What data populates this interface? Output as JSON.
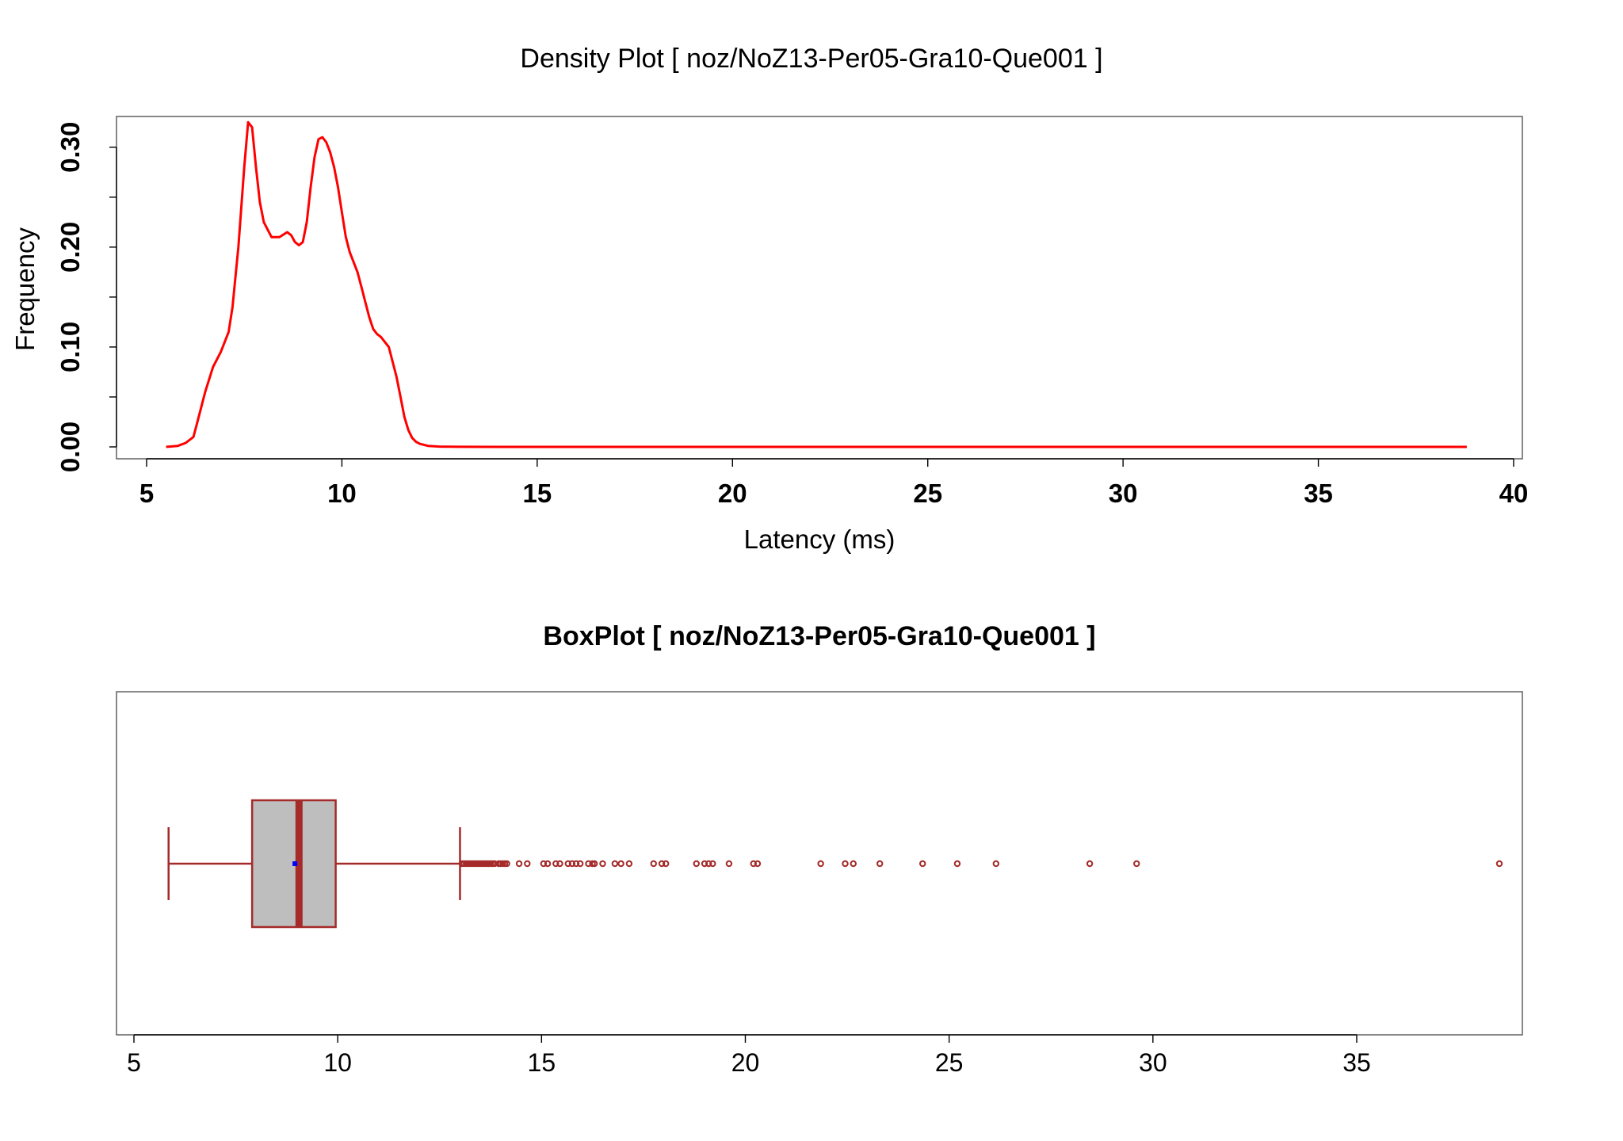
{
  "chart_data": [
    {
      "type": "line",
      "title": "Density Plot [ noz/NoZ13-Per05-Gra10-Que001 ]",
      "xlabel": "Latency (ms)",
      "ylabel": "Frequency",
      "xlim": [
        5,
        40
      ],
      "ylim": [
        0,
        0.33
      ],
      "x_ticks": [
        "5",
        "10",
        "15",
        "20",
        "25",
        "30",
        "35",
        "40"
      ],
      "y_ticks": [
        "0.00",
        "0.10",
        "0.20",
        "0.30"
      ],
      "line_color": "#ff0000",
      "series": [
        {
          "x": [
            5.5,
            5.8,
            6.0,
            6.2,
            6.3,
            6.5,
            6.7,
            6.9,
            7.1,
            7.2,
            7.35,
            7.5,
            7.6,
            7.7,
            7.8,
            7.9,
            8.0,
            8.2,
            8.4,
            8.6,
            8.7,
            8.8,
            8.9,
            9.0,
            9.1,
            9.2,
            9.3,
            9.4,
            9.5,
            9.6,
            9.7,
            9.8,
            9.9,
            10.0,
            10.1,
            10.2,
            10.3,
            10.4,
            10.5,
            10.6,
            10.7,
            10.8,
            10.9,
            11.0,
            11.2,
            11.4,
            11.5,
            11.6,
            11.7,
            11.8,
            11.9,
            12.0,
            12.2,
            12.5,
            13.0,
            14.0,
            20.0,
            30.0,
            38.8
          ],
          "y": [
            0.0,
            0.001,
            0.004,
            0.01,
            0.025,
            0.055,
            0.08,
            0.095,
            0.115,
            0.14,
            0.2,
            0.28,
            0.325,
            0.32,
            0.28,
            0.245,
            0.225,
            0.21,
            0.21,
            0.215,
            0.212,
            0.205,
            0.202,
            0.205,
            0.225,
            0.26,
            0.29,
            0.308,
            0.31,
            0.305,
            0.295,
            0.28,
            0.26,
            0.235,
            0.21,
            0.195,
            0.185,
            0.175,
            0.16,
            0.145,
            0.13,
            0.118,
            0.113,
            0.11,
            0.1,
            0.07,
            0.05,
            0.03,
            0.017,
            0.009,
            0.005,
            0.003,
            0.001,
            0.0003,
            0.0001,
            0.0,
            0.0,
            0.0,
            0.0
          ]
        }
      ]
    },
    {
      "type": "box",
      "title": "BoxPlot [ noz/NoZ13-Per05-Gra10-Que001 ]",
      "xlim": [
        5,
        40
      ],
      "x_ticks": [
        "5",
        "10",
        "15",
        "20",
        "25",
        "30",
        "35"
      ],
      "box_fill": "#bebebe",
      "border_color": "#a52a2a",
      "mean_color": "#0000ff",
      "whisker_low": 5.85,
      "q1": 7.9,
      "median": 9.05,
      "mean": 8.95,
      "q3": 9.95,
      "whisker_high": 13.0,
      "outliers": [
        13.05,
        13.1,
        13.15,
        13.2,
        13.25,
        13.3,
        13.35,
        13.4,
        13.45,
        13.5,
        13.55,
        13.6,
        13.65,
        13.7,
        13.75,
        13.8,
        13.85,
        13.95,
        14.0,
        14.05,
        14.1,
        14.15,
        14.45,
        14.65,
        15.05,
        15.15,
        15.35,
        15.45,
        15.65,
        15.75,
        15.85,
        15.95,
        16.15,
        16.25,
        16.3,
        16.5,
        16.8,
        16.95,
        17.15,
        17.75,
        17.95,
        18.05,
        18.8,
        19.0,
        19.1,
        19.2,
        19.6,
        20.2,
        20.3,
        21.85,
        22.45,
        22.65,
        23.3,
        24.35,
        25.2,
        26.15,
        28.45,
        29.6,
        38.5
      ]
    }
  ]
}
